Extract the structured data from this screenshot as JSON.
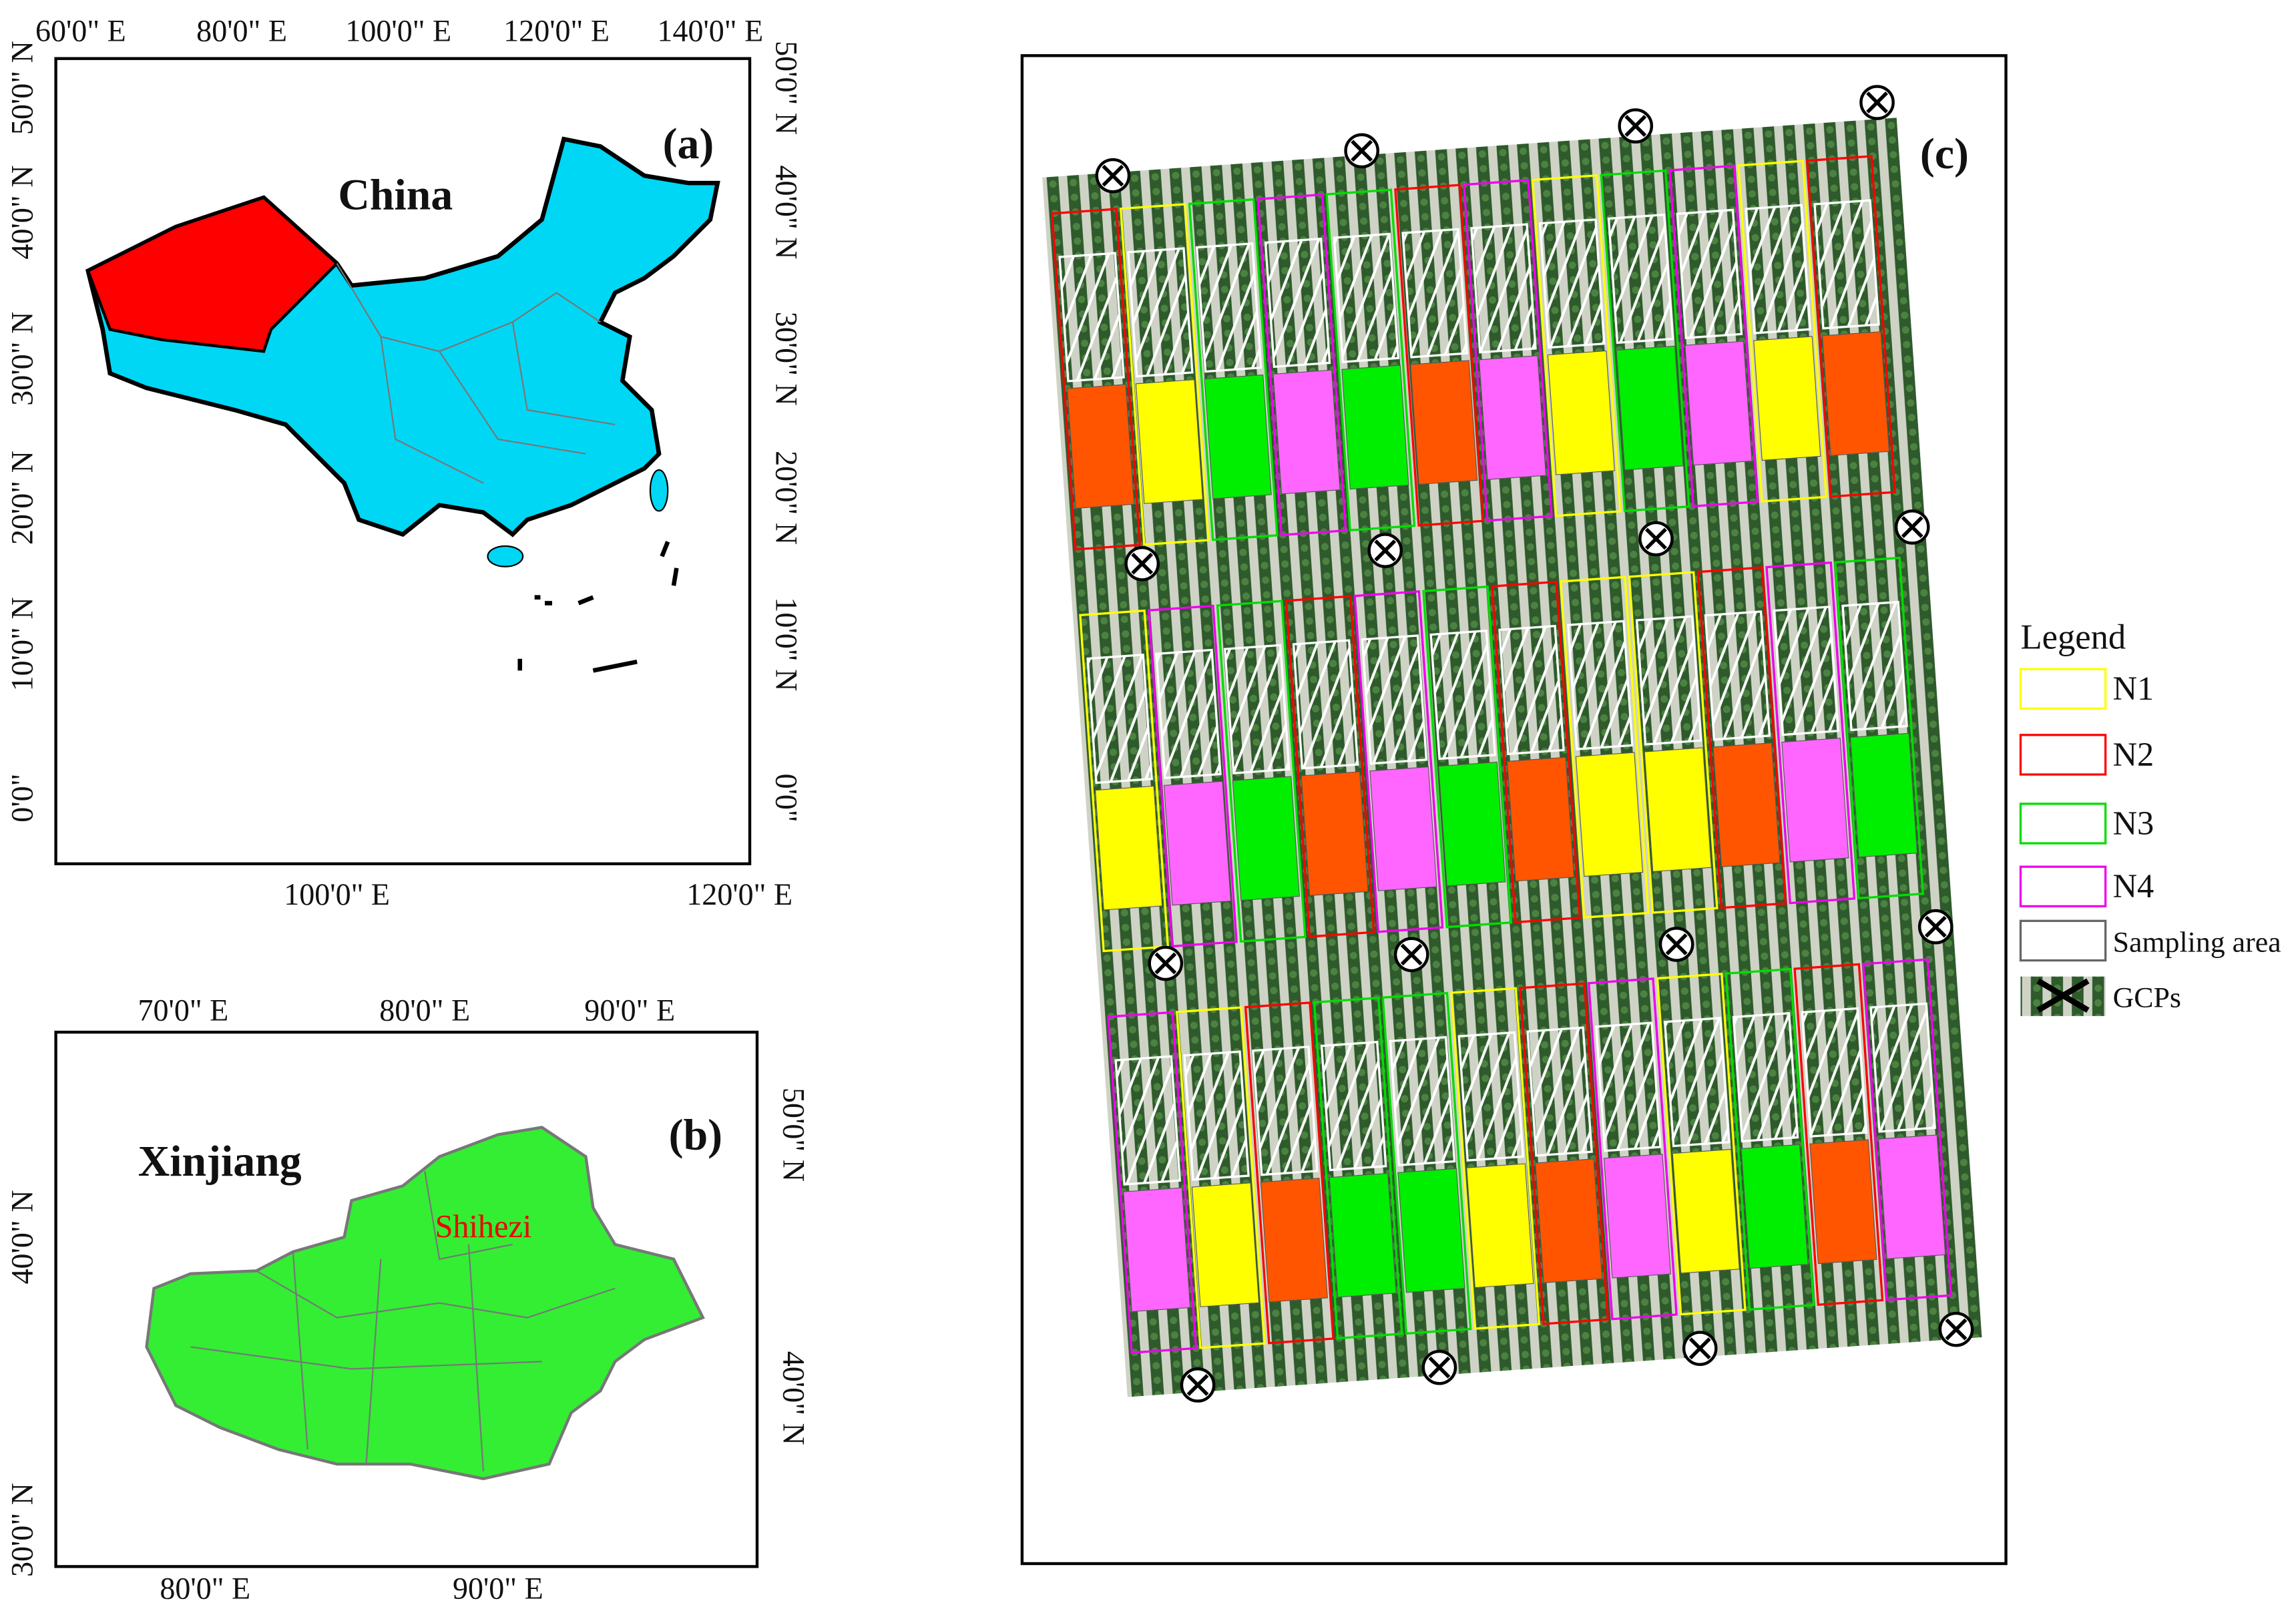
{
  "panel_a": {
    "label": "(a)",
    "country": "China",
    "top_ticks": [
      "60'0\" E",
      "80'0\" E",
      "100'0\" E",
      "120'0\" E",
      "140'0\" E"
    ],
    "bottom_ticks": [
      "100'0\" E",
      "120'0\" E"
    ],
    "left_ticks": [
      "0'0\"",
      "10'0\" N",
      "20'0\" N",
      "30'0\" N",
      "40'0\" N",
      "50'0\" N"
    ],
    "right_ticks": [
      "0'0\"",
      "10'0\" N",
      "20'0\" N",
      "30'0\" N",
      "40'0\" N",
      "50'0\" N"
    ]
  },
  "panel_b": {
    "label": "(b)",
    "region": "Xinjiang",
    "city": "Shihezi",
    "top_ticks": [
      "70'0\" E",
      "80'0\" E",
      "90'0\" E"
    ],
    "bottom_ticks": [
      "80'0\" E",
      "90'0\" E"
    ],
    "left_ticks": [
      "30'0\" N",
      "40'0\" N"
    ],
    "right_ticks": [
      "40'0\" N",
      "50'0\" N"
    ]
  },
  "panel_c": {
    "label": "(c)"
  },
  "legend": {
    "title": "Legend",
    "items": [
      "N1",
      "N2",
      "N3",
      "N4",
      "Sampling area",
      "GCPs"
    ]
  }
}
